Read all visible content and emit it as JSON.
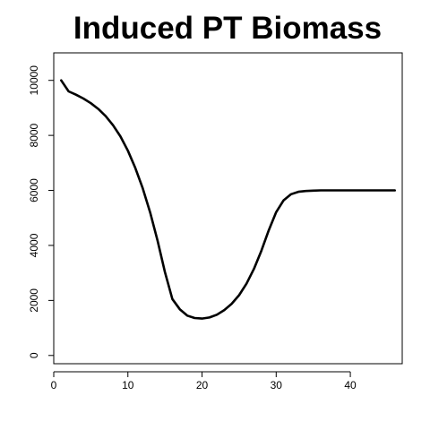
{
  "chart_data": {
    "type": "line",
    "title": "Induced PT Biomass",
    "xlabel": "",
    "ylabel": "",
    "xlim": [
      0,
      47
    ],
    "ylim": [
      -300,
      11000
    ],
    "x_ticks": [
      0,
      10,
      20,
      30,
      40
    ],
    "y_ticks": [
      0,
      2000,
      4000,
      6000,
      8000,
      10000
    ],
    "grid": false,
    "legend": "none",
    "series": [
      {
        "color": "#000000",
        "points": [
          [
            1,
            10000
          ],
          [
            2,
            9600
          ],
          [
            3,
            9480
          ],
          [
            4,
            9340
          ],
          [
            5,
            9170
          ],
          [
            6,
            8960
          ],
          [
            7,
            8700
          ],
          [
            8,
            8370
          ],
          [
            9,
            7960
          ],
          [
            10,
            7440
          ],
          [
            11,
            6820
          ],
          [
            12,
            6080
          ],
          [
            13,
            5200
          ],
          [
            14,
            4170
          ],
          [
            15,
            3030
          ],
          [
            16,
            2050
          ],
          [
            17,
            1680
          ],
          [
            18,
            1450
          ],
          [
            19,
            1360
          ],
          [
            20,
            1340
          ],
          [
            21,
            1380
          ],
          [
            22,
            1480
          ],
          [
            23,
            1650
          ],
          [
            24,
            1880
          ],
          [
            25,
            2190
          ],
          [
            26,
            2610
          ],
          [
            27,
            3150
          ],
          [
            28,
            3800
          ],
          [
            29,
            4550
          ],
          [
            30,
            5210
          ],
          [
            31,
            5640
          ],
          [
            32,
            5860
          ],
          [
            33,
            5950
          ],
          [
            34,
            5980
          ],
          [
            35,
            5990
          ],
          [
            36,
            6000
          ],
          [
            37,
            6000
          ],
          [
            38,
            6000
          ],
          [
            39,
            6000
          ],
          [
            40,
            6000
          ],
          [
            41,
            6000
          ],
          [
            42,
            6000
          ],
          [
            43,
            6000
          ],
          [
            44,
            6000
          ],
          [
            45,
            6000
          ],
          [
            46,
            6000
          ]
        ]
      }
    ]
  }
}
